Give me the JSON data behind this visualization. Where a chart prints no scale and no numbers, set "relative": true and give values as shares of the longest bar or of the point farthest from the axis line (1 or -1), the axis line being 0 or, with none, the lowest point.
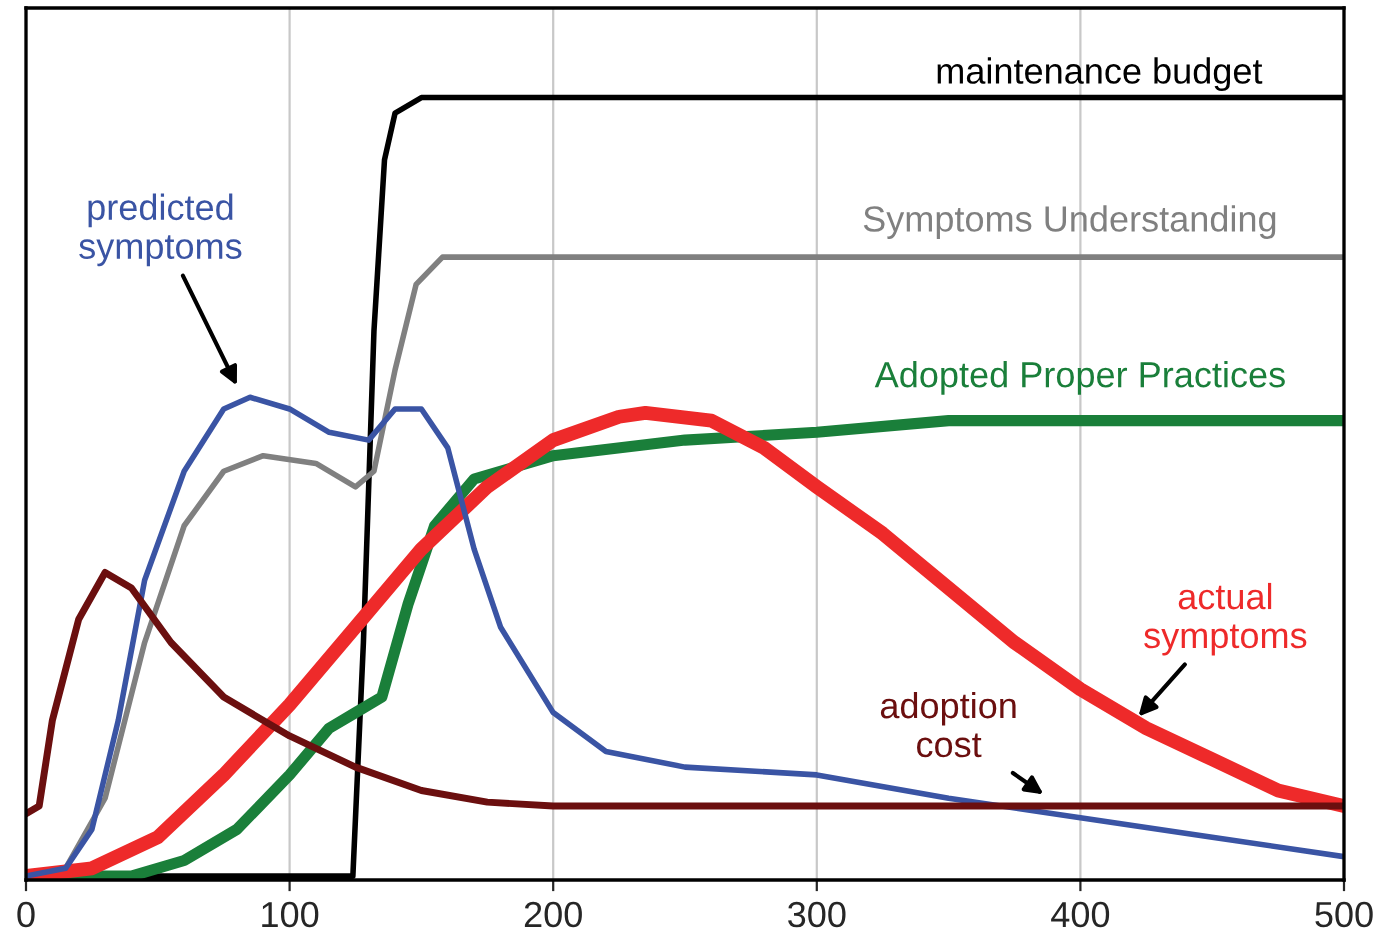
{
  "chart_data": {
    "type": "line",
    "relative": true,
    "xlim": [
      0,
      500
    ],
    "xticks": [
      0,
      100,
      200,
      300,
      400,
      500
    ],
    "grid": "x",
    "tick_labels": "x",
    "legend": false,
    "series": [
      {
        "name": "maintenance budget",
        "color": "#000000",
        "x": [
          0,
          124,
          128,
          132,
          136,
          140,
          150,
          500
        ],
        "values": [
          0,
          0,
          0.3,
          0.7,
          0.92,
          0.98,
          1,
          1
        ]
      },
      {
        "name": "Symptoms Understanding",
        "color": "#808080",
        "x": [
          0,
          15,
          30,
          45,
          60,
          75,
          90,
          110,
          125,
          132,
          140,
          148,
          158,
          500
        ],
        "values": [
          0,
          0.01,
          0.1,
          0.3,
          0.45,
          0.52,
          0.54,
          0.53,
          0.5,
          0.52,
          0.65,
          0.76,
          0.795,
          0.795
        ]
      },
      {
        "name": "Adopted Proper Practices",
        "color": "#1a7f3a",
        "x": [
          0,
          40,
          60,
          80,
          100,
          115,
          125,
          135,
          145,
          155,
          170,
          200,
          250,
          300,
          350,
          500
        ],
        "values": [
          0,
          0,
          0.02,
          0.06,
          0.13,
          0.19,
          0.21,
          0.23,
          0.35,
          0.45,
          0.51,
          0.54,
          0.56,
          0.57,
          0.585,
          0.585
        ]
      },
      {
        "name": "actual\nsymptoms",
        "color": "#ee2a2a",
        "x": [
          0,
          25,
          50,
          75,
          100,
          125,
          150,
          175,
          200,
          225,
          235,
          260,
          280,
          300,
          325,
          350,
          375,
          400,
          425,
          450,
          475,
          500
        ],
        "values": [
          0,
          0.01,
          0.05,
          0.13,
          0.22,
          0.32,
          0.42,
          0.5,
          0.56,
          0.59,
          0.595,
          0.585,
          0.55,
          0.5,
          0.44,
          0.37,
          0.3,
          0.24,
          0.19,
          0.15,
          0.11,
          0.09
        ]
      },
      {
        "name": "predicted\nsymptoms",
        "color": "#3a54a4",
        "x": [
          0,
          15,
          25,
          35,
          45,
          60,
          75,
          85,
          100,
          115,
          130,
          140,
          150,
          160,
          170,
          180,
          200,
          220,
          250,
          300,
          350,
          400,
          450,
          500
        ],
        "values": [
          0,
          0.01,
          0.06,
          0.2,
          0.38,
          0.52,
          0.6,
          0.615,
          0.6,
          0.57,
          0.56,
          0.6,
          0.6,
          0.55,
          0.42,
          0.32,
          0.21,
          0.16,
          0.14,
          0.13,
          0.1,
          0.075,
          0.05,
          0.025
        ]
      },
      {
        "name": "adoption\ncost",
        "color": "#6b0f0f",
        "x": [
          0,
          5,
          10,
          20,
          30,
          40,
          55,
          75,
          100,
          125,
          150,
          175,
          200,
          500
        ],
        "values": [
          0.08,
          0.09,
          0.2,
          0.33,
          0.39,
          0.37,
          0.3,
          0.23,
          0.18,
          0.14,
          0.11,
          0.095,
          0.09,
          0.09
        ]
      }
    ]
  }
}
